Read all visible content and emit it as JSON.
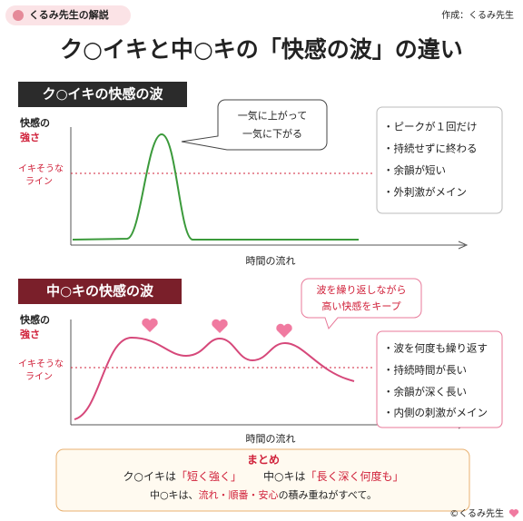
{
  "header": {
    "badge": "くるみ先生の解説",
    "author": "作成：くるみ先生"
  },
  "title": "ク○イキと中○キの「快感の波」の違い",
  "section1": {
    "heading": "ク○イキの快感の波",
    "y_label": [
      "快感の",
      "強さ"
    ],
    "threshold_label": [
      "イキそうな",
      "ライン"
    ],
    "x_label": "時間の流れ",
    "callout": [
      "一気に上がって",
      "一気に下がる"
    ],
    "points": [
      "・ピークが１回だけ",
      "・持続せずに終わる",
      "・余韻が短い",
      "・外刺激がメイン"
    ]
  },
  "section2": {
    "heading": "中○キの快感の波",
    "y_label": [
      "快感の",
      "強さ"
    ],
    "threshold_label": [
      "イキそうな",
      "ライン"
    ],
    "x_label": "時間の流れ",
    "callout": [
      "波を繰り返しながら",
      "高い快感をキープ"
    ],
    "points": [
      "・波を何度も繰り返す",
      "・持続時間が長い",
      "・余韻が深く長い",
      "・内側の刺激がメイン"
    ]
  },
  "summary": {
    "heading": "まとめ",
    "line1": [
      "ク○イキは",
      "「短く強く」",
      "中○キは",
      "「長く深く何度も」"
    ],
    "line2": [
      "中○キは、",
      "流れ・順番・安心",
      "の積み重ねがすべて。"
    ]
  },
  "footer": "©くるみ先生"
}
